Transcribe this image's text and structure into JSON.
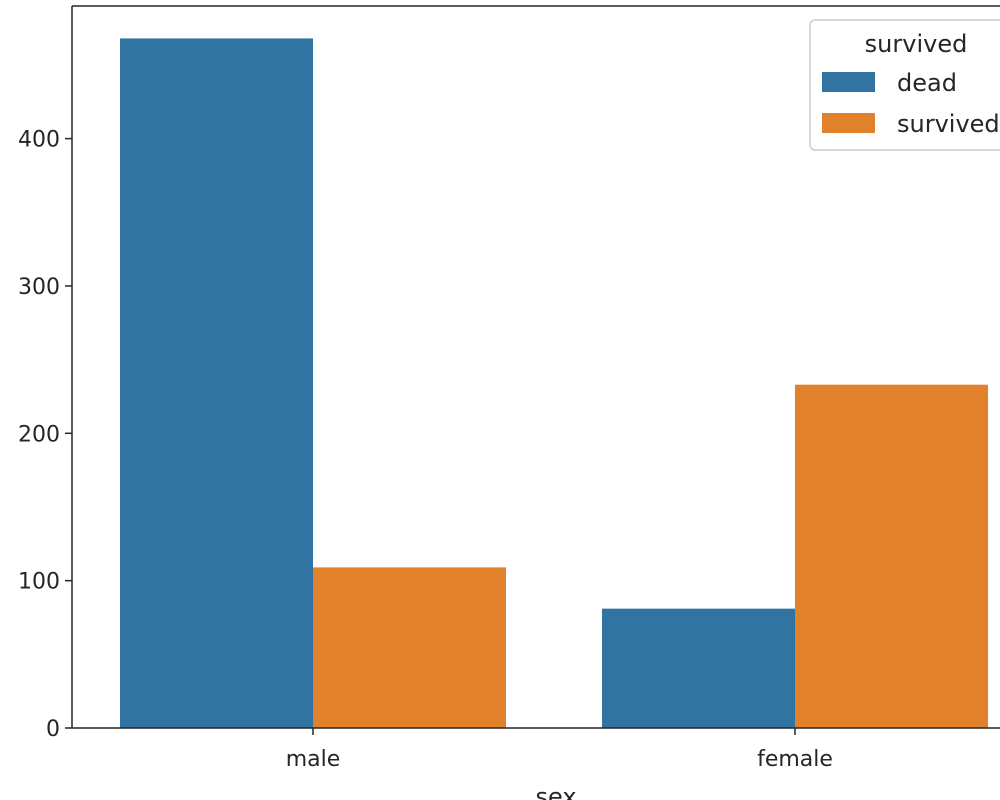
{
  "chart_data": {
    "type": "bar",
    "title": "",
    "xlabel": "sex",
    "ylabel": "",
    "categories": [
      "male",
      "female"
    ],
    "series": [
      {
        "name": "dead",
        "values": [
          468,
          81
        ]
      },
      {
        "name": "survived",
        "values": [
          109,
          233
        ]
      }
    ],
    "ylim": [
      0,
      490
    ],
    "yticks": [
      0,
      100,
      200,
      300,
      400
    ],
    "grid": false,
    "legend": {
      "title": "survived",
      "placement": "top-right"
    }
  },
  "colors": {
    "dead": "#3274a1",
    "survived": "#e1812c",
    "axis": "#262626"
  }
}
